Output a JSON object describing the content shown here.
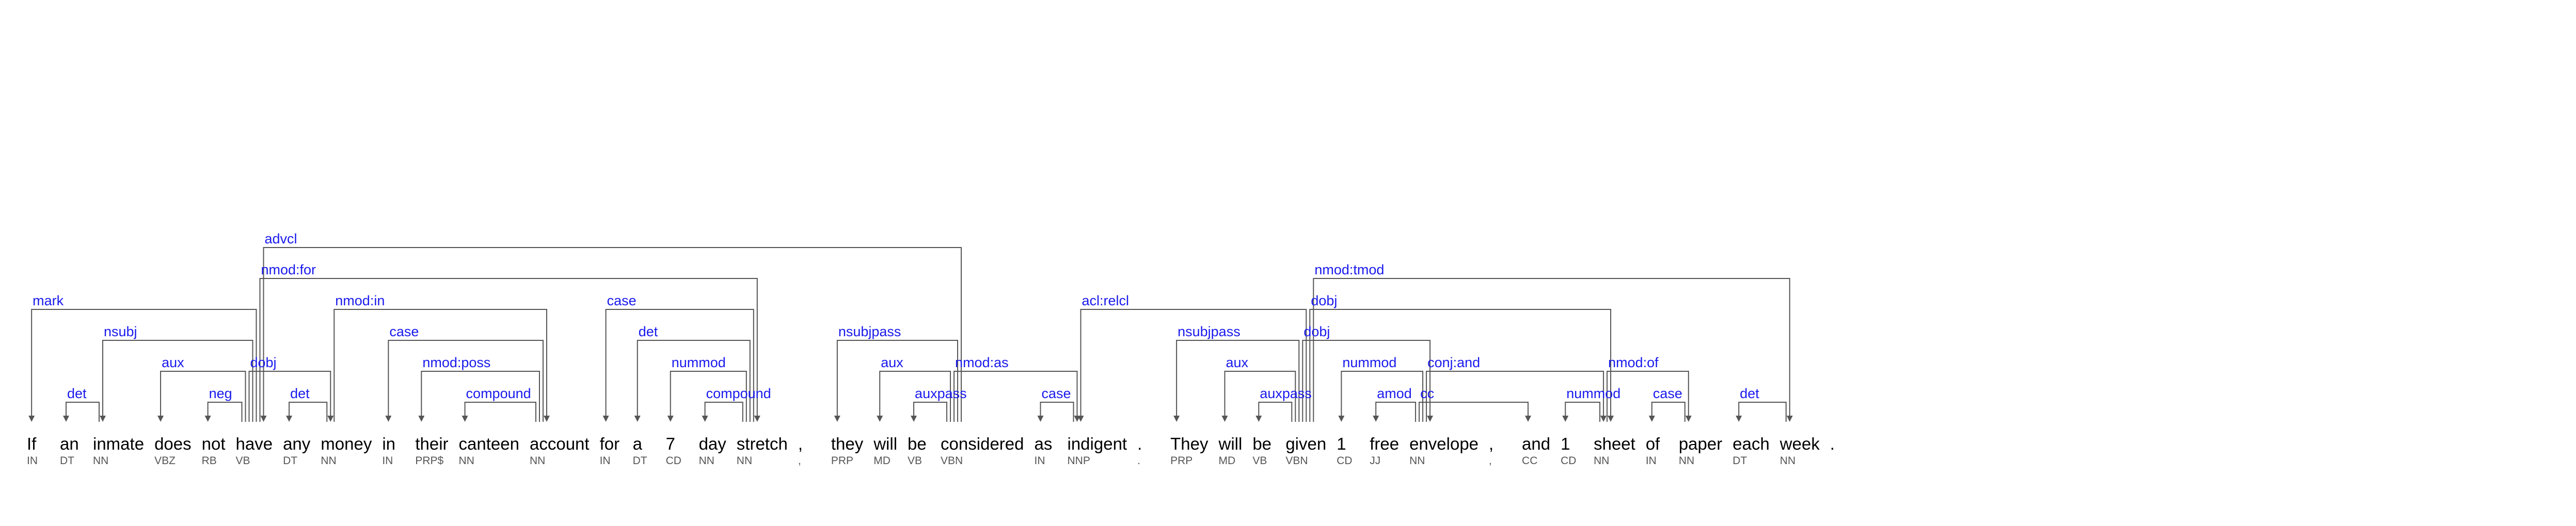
{
  "colors": {
    "label": "#1a1aee",
    "edge": "#555555",
    "word": "#000000",
    "tag": "#555555"
  },
  "tokens": [
    {
      "word": "If",
      "tag": "IN"
    },
    {
      "word": "an",
      "tag": "DT"
    },
    {
      "word": "inmate",
      "tag": "NN"
    },
    {
      "word": "does",
      "tag": "VBZ"
    },
    {
      "word": "not",
      "tag": "RB"
    },
    {
      "word": "have",
      "tag": "VB"
    },
    {
      "word": "any",
      "tag": "DT"
    },
    {
      "word": "money",
      "tag": "NN"
    },
    {
      "word": "in",
      "tag": "IN"
    },
    {
      "word": "their",
      "tag": "PRP$"
    },
    {
      "word": "canteen",
      "tag": "NN"
    },
    {
      "word": "account",
      "tag": "NN"
    },
    {
      "word": "for",
      "tag": "IN"
    },
    {
      "word": "a",
      "tag": "DT"
    },
    {
      "word": "7",
      "tag": "CD"
    },
    {
      "word": "day",
      "tag": "NN"
    },
    {
      "word": "stretch",
      "tag": "NN"
    },
    {
      "word": ",",
      "tag": ","
    },
    {
      "word": "they",
      "tag": "PRP"
    },
    {
      "word": "will",
      "tag": "MD"
    },
    {
      "word": "be",
      "tag": "VB"
    },
    {
      "word": "considered",
      "tag": "VBN"
    },
    {
      "word": "as",
      "tag": "IN"
    },
    {
      "word": "indigent",
      "tag": "NNP"
    },
    {
      "word": ".",
      "tag": "."
    },
    {
      "word": "They",
      "tag": "PRP"
    },
    {
      "word": "will",
      "tag": "MD"
    },
    {
      "word": "be",
      "tag": "VB"
    },
    {
      "word": "given",
      "tag": "VBN"
    },
    {
      "word": "1",
      "tag": "CD"
    },
    {
      "word": "free",
      "tag": "JJ"
    },
    {
      "word": "envelope",
      "tag": "NN"
    },
    {
      "word": ",",
      "tag": ","
    },
    {
      "word": "and",
      "tag": "CC"
    },
    {
      "word": "1",
      "tag": "CD"
    },
    {
      "word": "sheet",
      "tag": "NN"
    },
    {
      "word": "of",
      "tag": "IN"
    },
    {
      "word": "paper",
      "tag": "NN"
    },
    {
      "word": "each",
      "tag": "DT"
    },
    {
      "word": "week",
      "tag": "NN"
    },
    {
      "word": ".",
      "tag": ""
    }
  ],
  "arcs": [
    {
      "head": 5,
      "dep": 0,
      "label": "mark"
    },
    {
      "head": 2,
      "dep": 1,
      "label": "det"
    },
    {
      "head": 5,
      "dep": 2,
      "label": "nsubj"
    },
    {
      "head": 5,
      "dep": 3,
      "label": "aux"
    },
    {
      "head": 5,
      "dep": 4,
      "label": "neg"
    },
    {
      "head": 21,
      "dep": 5,
      "label": "advcl"
    },
    {
      "head": 7,
      "dep": 6,
      "label": "det"
    },
    {
      "head": 5,
      "dep": 7,
      "label": "dobj"
    },
    {
      "head": 11,
      "dep": 8,
      "label": "case"
    },
    {
      "head": 11,
      "dep": 9,
      "label": "nmod:poss"
    },
    {
      "head": 11,
      "dep": 10,
      "label": "compound"
    },
    {
      "head": 7,
      "dep": 11,
      "label": "nmod:in"
    },
    {
      "head": 16,
      "dep": 12,
      "label": "case"
    },
    {
      "head": 16,
      "dep": 13,
      "label": "det"
    },
    {
      "head": 16,
      "dep": 14,
      "label": "nummod"
    },
    {
      "head": 16,
      "dep": 15,
      "label": "compound"
    },
    {
      "head": 5,
      "dep": 16,
      "label": "nmod:for"
    },
    {
      "head": 21,
      "dep": 18,
      "label": "nsubjpass"
    },
    {
      "head": 21,
      "dep": 19,
      "label": "aux"
    },
    {
      "head": 21,
      "dep": 20,
      "label": "auxpass"
    },
    {
      "head": 23,
      "dep": 22,
      "label": "case"
    },
    {
      "head": 21,
      "dep": 23,
      "label": "nmod:as"
    },
    {
      "head": 28,
      "dep": 23,
      "label": "acl:relcl"
    },
    {
      "head": 28,
      "dep": 25,
      "label": "nsubjpass"
    },
    {
      "head": 28,
      "dep": 26,
      "label": "aux"
    },
    {
      "head": 28,
      "dep": 27,
      "label": "auxpass"
    },
    {
      "head": 31,
      "dep": 29,
      "label": "nummod"
    },
    {
      "head": 31,
      "dep": 30,
      "label": "amod"
    },
    {
      "head": 28,
      "dep": 31,
      "label": "dobj"
    },
    {
      "head": 31,
      "dep": 33,
      "label": "cc"
    },
    {
      "head": 35,
      "dep": 34,
      "label": "nummod"
    },
    {
      "head": 31,
      "dep": 35,
      "label": "conj:and"
    },
    {
      "head": 28,
      "dep": 35,
      "label": "dobj"
    },
    {
      "head": 37,
      "dep": 36,
      "label": "case"
    },
    {
      "head": 35,
      "dep": 37,
      "label": "nmod:of"
    },
    {
      "head": 39,
      "dep": 38,
      "label": "det"
    },
    {
      "head": 28,
      "dep": 39,
      "label": "nmod:tmod"
    }
  ]
}
